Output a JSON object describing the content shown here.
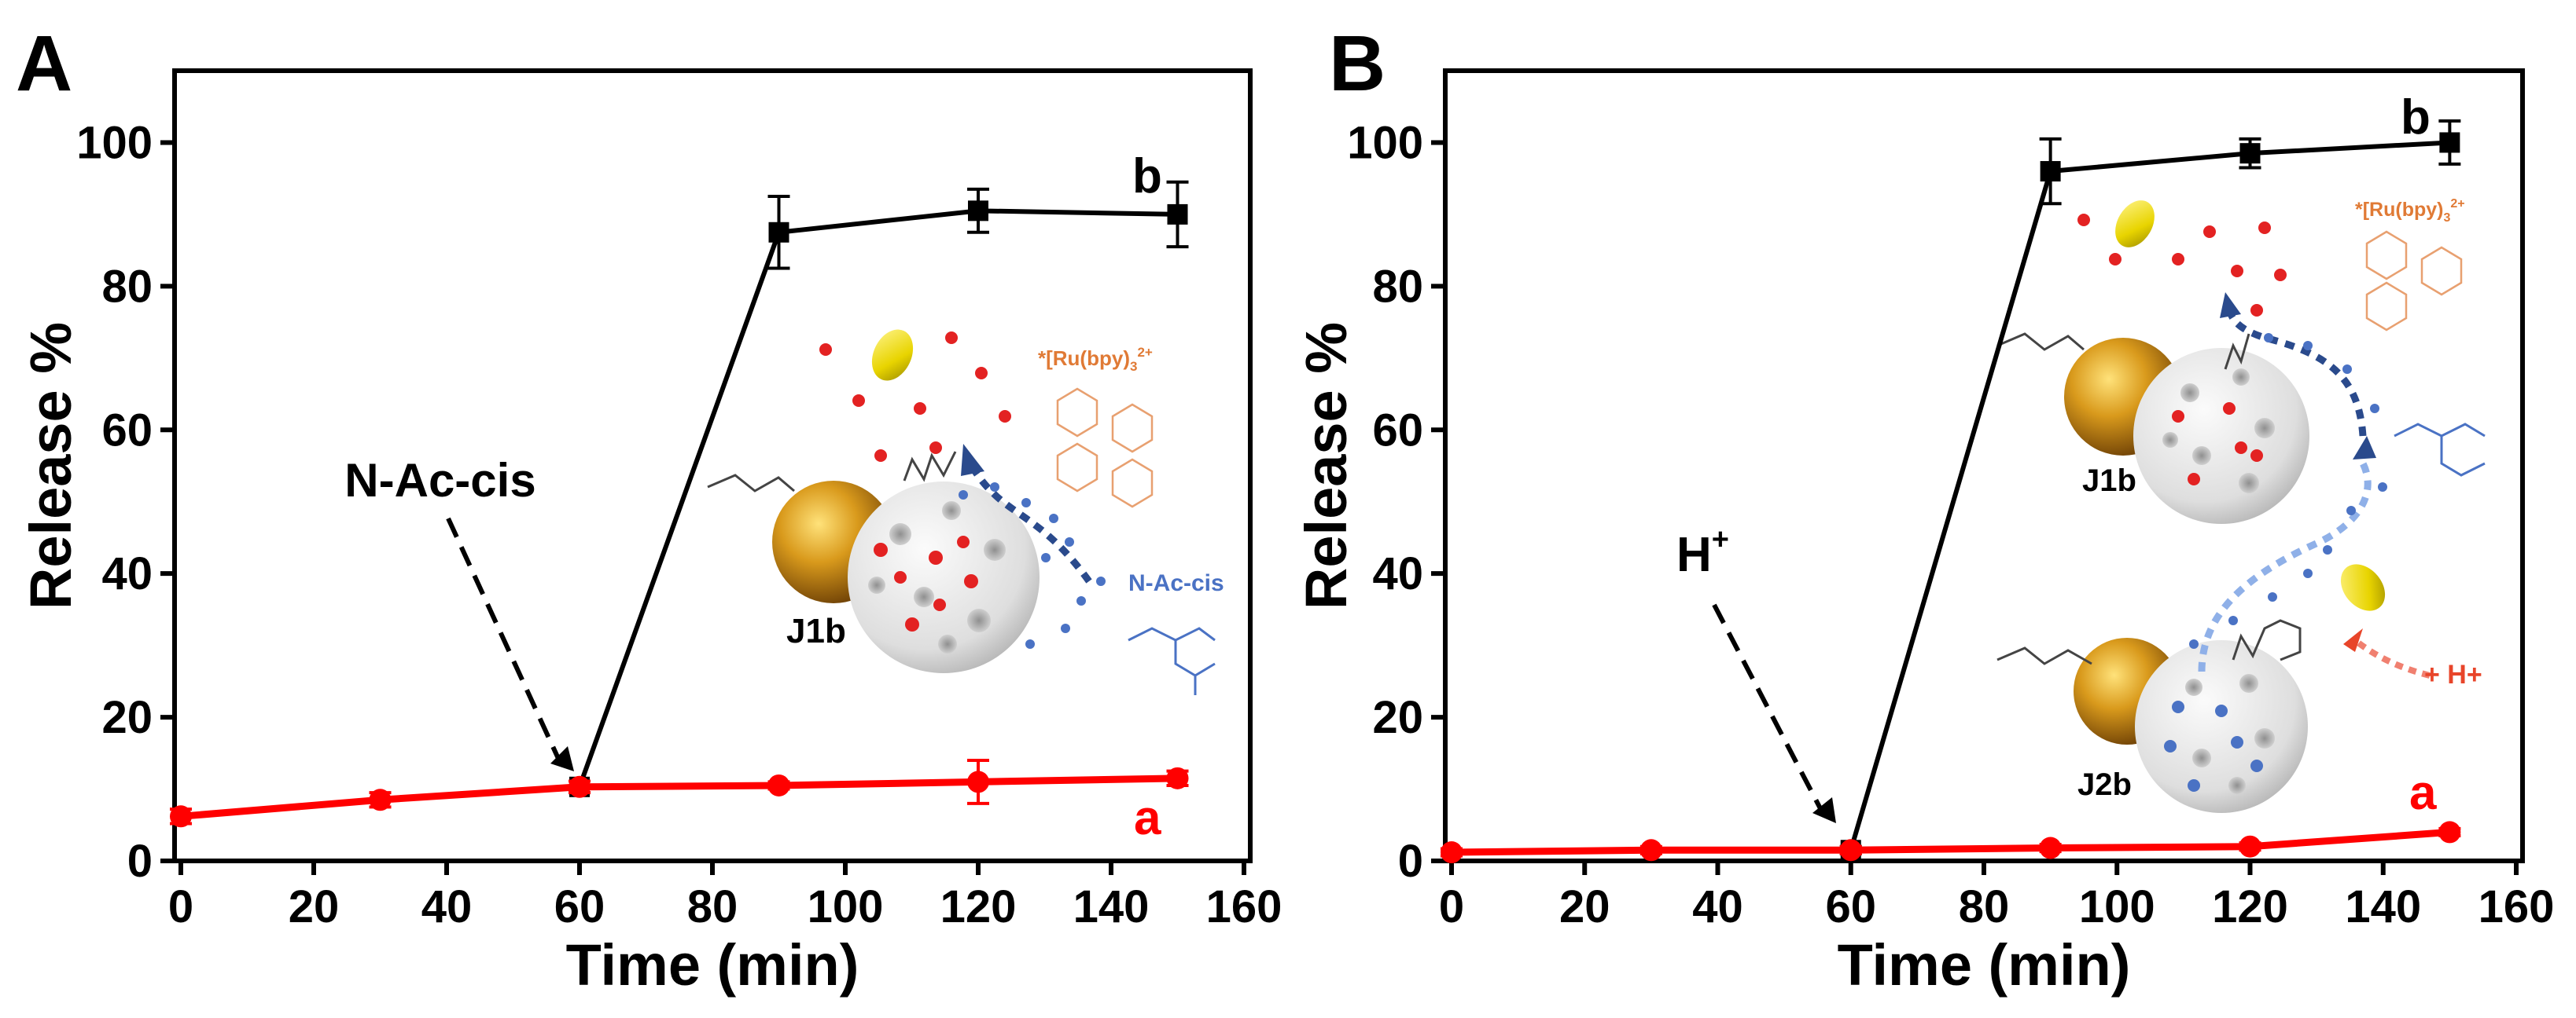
{
  "chart_data": [
    {
      "type": "line",
      "panel_label": "A",
      "xlabel": "Time (min)",
      "ylabel": "Release %",
      "xlim": [
        0,
        160
      ],
      "ylim": [
        0,
        110
      ],
      "xticks": [
        0,
        20,
        40,
        60,
        80,
        100,
        120,
        140,
        160
      ],
      "yticks": [
        0,
        20,
        40,
        60,
        80,
        100
      ],
      "xtick_labels": [
        "0",
        "20",
        "40",
        "60",
        "80",
        "100",
        "120",
        "140",
        "160"
      ],
      "ytick_labels": [
        "0",
        "20",
        "40",
        "60",
        "80",
        "100"
      ],
      "series": [
        {
          "name": "b",
          "color": "#000000",
          "marker": "square",
          "x": [
            60,
            90,
            120,
            150
          ],
          "y": [
            10.3,
            87.5,
            90.5,
            90.0
          ],
          "err": [
            0.8,
            5.0,
            3.0,
            4.5
          ]
        },
        {
          "name": "a",
          "color": "#ff0000",
          "marker": "circle",
          "x": [
            0,
            30,
            60,
            90,
            120,
            150
          ],
          "y": [
            6.2,
            8.5,
            10.3,
            10.5,
            11.0,
            11.5
          ],
          "err": [
            1.0,
            1.0,
            0.8,
            0.5,
            3.0,
            1.0
          ]
        }
      ],
      "annotations": [
        {
          "text": "N-Ac-cis",
          "arrow_to_x": 60,
          "arrow_to_y": 12
        },
        {
          "text": "J1b"
        },
        {
          "text": "N-Ac-cis",
          "color": "#4a72c4"
        },
        {
          "text": "*[Ru(bpy)3]2+",
          "color": "#e07a35"
        }
      ]
    },
    {
      "type": "line",
      "panel_label": "B",
      "xlabel": "Time (min)",
      "ylabel": "Release %",
      "xlim": [
        0,
        160
      ],
      "ylim": [
        0,
        110
      ],
      "xticks": [
        0,
        20,
        40,
        60,
        80,
        100,
        120,
        140,
        160
      ],
      "yticks": [
        0,
        20,
        40,
        60,
        80,
        100
      ],
      "xtick_labels": [
        "0",
        "20",
        "40",
        "60",
        "80",
        "100",
        "120",
        "140",
        "160"
      ],
      "ytick_labels": [
        "0",
        "20",
        "40",
        "60",
        "80",
        "100"
      ],
      "series": [
        {
          "name": "b",
          "color": "#000000",
          "marker": "square",
          "x": [
            60,
            90,
            120,
            150
          ],
          "y": [
            1.5,
            96.0,
            98.5,
            100.0
          ],
          "err": [
            0.5,
            4.5,
            2.0,
            3.0
          ]
        },
        {
          "name": "a",
          "color": "#ff0000",
          "marker": "circle",
          "x": [
            0,
            30,
            60,
            90,
            120,
            150
          ],
          "y": [
            1.2,
            1.5,
            1.5,
            1.8,
            2.0,
            4.0
          ],
          "err": [
            0.5,
            0.5,
            0.5,
            0.5,
            0.5,
            0.5
          ]
        }
      ],
      "annotations": [
        {
          "text": "H+",
          "arrow_to_x": 60,
          "arrow_to_y": 3
        },
        {
          "text": "J1b"
        },
        {
          "text": "J2b"
        },
        {
          "text": "+ H+",
          "color": "#e8452a"
        },
        {
          "text": "*[Ru(bpy)3]2+",
          "color": "#e07a35"
        }
      ]
    }
  ]
}
